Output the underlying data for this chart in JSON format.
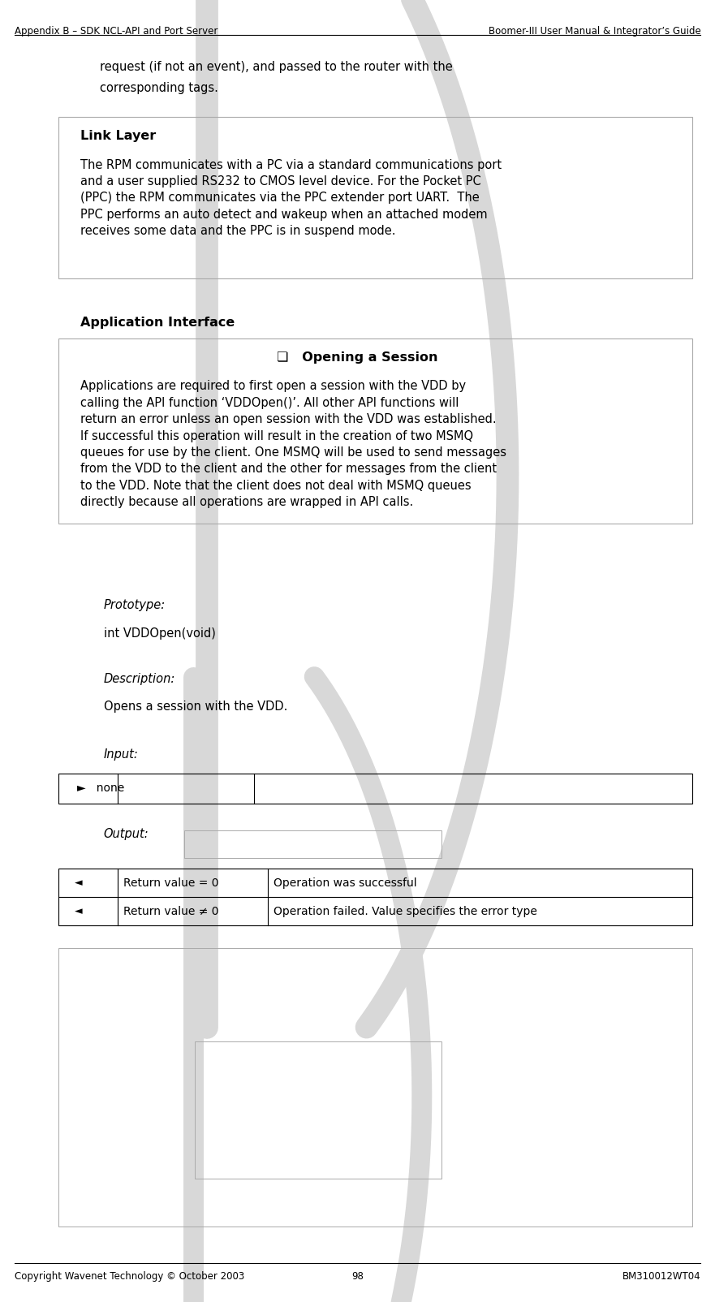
{
  "header_left": "Appendix B – SDK NCL-API and Port Server",
  "header_right": "Boomer-III User Manual & Integrator’s Guide",
  "footer_left": "Copyright Wavenet Technology © October 2003",
  "footer_center": "98",
  "footer_right": "BM310012WT04",
  "bg_color": "#ffffff",
  "text_color": "#000000",
  "header_line_color": "#000000",
  "footer_line_color": "#000000",
  "watermark_color": "#d8d8d8",
  "box_border_color": "#aaaaaa",
  "table_border_color": "#000000",
  "request_line1": "request (if not an event), and passed to the router with the",
  "request_line2": "corresponding tags.",
  "link_layer_heading": "Link Layer",
  "link_layer_text": "The RPM communicates with a PC via a standard communications port\nand a user supplied RS232 to CMOS level device. For the Pocket PC\n(PPC) the RPM communicates via the PPC extender port UART.  The\nPPC performs an auto detect and wakeup when an attached modem\nreceives some data and the PPC is in suspend mode.",
  "app_interface_heading": "Application Interface",
  "opening_session_heading": "❏   Opening a Session",
  "opening_session_text": "Applications are required to first open a session with the VDD by\ncalling the API function ‘VDDOpen()’. All other API functions will\nreturn an error unless an open session with the VDD was established.\nIf successful this operation will result in the creation of two MSMQ\nqueues for use by the client. One MSMQ will be used to send messages\nfrom the VDD to the client and the other for messages from the client\nto the VDD. Note that the client does not deal with MSMQ queues\ndirectly because all operations are wrapped in API calls.",
  "prototype_label": "Prototype:",
  "prototype_text": "int VDDOpen(void)",
  "description_label": "Description:",
  "description_text": "Opens a session with the VDD.",
  "input_label": "Input:",
  "input_row_col1": "►   none",
  "output_label": "Output:",
  "out_row1_col1": "◄",
  "out_row1_col2": "Return value = 0",
  "out_row1_col3": "Operation was successful",
  "out_row2_col1": "◄",
  "out_row2_col2": "Return value ≠ 0",
  "out_row2_col3": "Operation failed. Value specifies the error type"
}
